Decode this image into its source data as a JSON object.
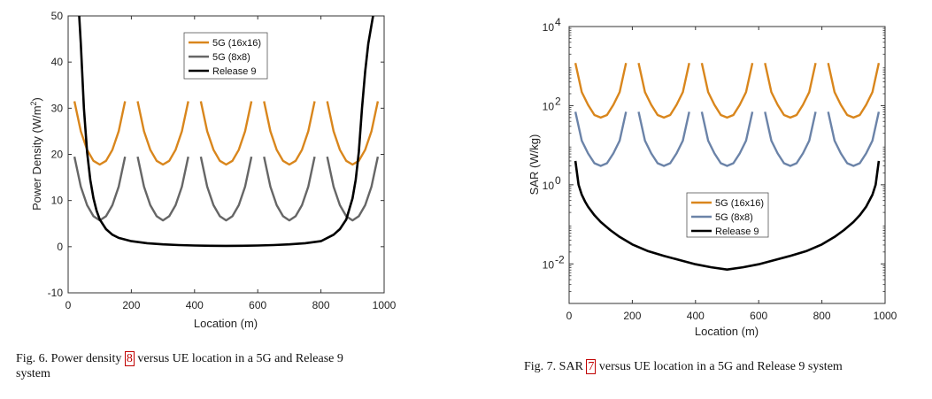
{
  "chart_data": [
    {
      "type": "line",
      "xlabel": "Location (m)",
      "ylabel": "Power Density (W/m",
      "ylabel_sup": "2",
      "ylabel_end": ")",
      "xlim": [
        0,
        1000
      ],
      "ylim": [
        -10,
        50
      ],
      "yscale": "linear",
      "xticks": [
        0,
        200,
        400,
        600,
        800,
        1000
      ],
      "yticks": [
        -10,
        0,
        10,
        20,
        30,
        40,
        50
      ],
      "grid": false,
      "legend_position": "top-center",
      "series": [
        {
          "name": "5G (16x16)",
          "color": "#d9861c",
          "segments": [
            {
              "x": [
                20,
                40,
                60,
                80,
                100,
                120,
                140,
                160,
                180
              ],
              "y": [
                31.5,
                25.0,
                21.0,
                18.6,
                17.8,
                18.6,
                21.0,
                25.0,
                31.5
              ]
            },
            {
              "x": [
                220,
                240,
                260,
                280,
                300,
                320,
                340,
                360,
                380
              ],
              "y": [
                31.5,
                25.0,
                21.0,
                18.6,
                17.8,
                18.6,
                21.0,
                25.0,
                31.5
              ]
            },
            {
              "x": [
                420,
                440,
                460,
                480,
                500,
                520,
                540,
                560,
                580
              ],
              "y": [
                31.5,
                25.0,
                21.0,
                18.6,
                17.8,
                18.6,
                21.0,
                25.0,
                31.5
              ]
            },
            {
              "x": [
                620,
                640,
                660,
                680,
                700,
                720,
                740,
                760,
                780
              ],
              "y": [
                31.5,
                25.0,
                21.0,
                18.6,
                17.8,
                18.6,
                21.0,
                25.0,
                31.5
              ]
            },
            {
              "x": [
                820,
                840,
                860,
                880,
                900,
                920,
                940,
                960,
                980
              ],
              "y": [
                31.5,
                25.0,
                21.0,
                18.6,
                17.8,
                18.6,
                21.0,
                25.0,
                31.5
              ]
            }
          ]
        },
        {
          "name": "5G (8x8)",
          "color": "#666666",
          "segments": [
            {
              "x": [
                20,
                40,
                60,
                80,
                100,
                120,
                140,
                160,
                180
              ],
              "y": [
                19.5,
                13.0,
                9.0,
                6.6,
                5.7,
                6.6,
                9.0,
                13.0,
                19.5
              ]
            },
            {
              "x": [
                220,
                240,
                260,
                280,
                300,
                320,
                340,
                360,
                380
              ],
              "y": [
                19.5,
                13.0,
                9.0,
                6.6,
                5.7,
                6.6,
                9.0,
                13.0,
                19.5
              ]
            },
            {
              "x": [
                420,
                440,
                460,
                480,
                500,
                520,
                540,
                560,
                580
              ],
              "y": [
                19.5,
                13.0,
                9.0,
                6.6,
                5.7,
                6.6,
                9.0,
                13.0,
                19.5
              ]
            },
            {
              "x": [
                620,
                640,
                660,
                680,
                700,
                720,
                740,
                760,
                780
              ],
              "y": [
                19.5,
                13.0,
                9.0,
                6.6,
                5.7,
                6.6,
                9.0,
                13.0,
                19.5
              ]
            },
            {
              "x": [
                820,
                840,
                860,
                880,
                900,
                920,
                940,
                960,
                980
              ],
              "y": [
                19.5,
                13.0,
                9.0,
                6.6,
                5.7,
                6.6,
                9.0,
                13.0,
                19.5
              ]
            }
          ]
        },
        {
          "name": "Release 9",
          "color": "#000000",
          "segments": [
            {
              "x": [
                35,
                40,
                50,
                60,
                70,
                80,
                90,
                100,
                120,
                140,
                160,
                200,
                250,
                300,
                350,
                400,
                450,
                500,
                550,
                600,
                650,
                700,
                750,
                800,
                840,
                860,
                880,
                900,
                910,
                920,
                930,
                940,
                950,
                960,
                965
              ],
              "y": [
                50,
                44,
                30,
                20.5,
                14.5,
                10.5,
                7.8,
                5.9,
                3.8,
                2.6,
                1.9,
                1.2,
                0.75,
                0.5,
                0.35,
                0.26,
                0.2,
                0.18,
                0.2,
                0.26,
                0.35,
                0.5,
                0.75,
                1.2,
                2.6,
                3.8,
                5.9,
                10.5,
                14.5,
                20.5,
                30,
                38,
                44,
                48,
                50
              ]
            }
          ]
        }
      ]
    },
    {
      "type": "line",
      "xlabel": "Location (m)",
      "ylabel": "SAR (W/kg)",
      "xlim": [
        0,
        1000
      ],
      "ylim_log10": [
        -3,
        4
      ],
      "yscale": "log",
      "xticks": [
        0,
        200,
        400,
        600,
        800,
        1000
      ],
      "ytick_exponents": [
        -2,
        0,
        2,
        4
      ],
      "ytick_base": "10",
      "grid": false,
      "legend_position": "bottom-center",
      "series": [
        {
          "name": "5G (16x16)",
          "color": "#d9861c",
          "segments": [
            {
              "x": [
                20,
                40,
                60,
                80,
                100,
                120,
                140,
                160,
                180
              ],
              "y": [
                1200.0,
                220.0,
                105.0,
                58.0,
                50.0,
                58.0,
                105.0,
                220.0,
                1200.0
              ]
            },
            {
              "x": [
                220,
                240,
                260,
                280,
                300,
                320,
                340,
                360,
                380
              ],
              "y": [
                1200.0,
                220.0,
                105.0,
                58.0,
                50.0,
                58.0,
                105.0,
                220.0,
                1200.0
              ]
            },
            {
              "x": [
                420,
                440,
                460,
                480,
                500,
                520,
                540,
                560,
                580
              ],
              "y": [
                1200.0,
                220.0,
                105.0,
                58.0,
                50.0,
                58.0,
                105.0,
                220.0,
                1200.0
              ]
            },
            {
              "x": [
                620,
                640,
                660,
                680,
                700,
                720,
                740,
                760,
                780
              ],
              "y": [
                1200.0,
                220.0,
                105.0,
                58.0,
                50.0,
                58.0,
                105.0,
                220.0,
                1200.0
              ]
            },
            {
              "x": [
                820,
                840,
                860,
                880,
                900,
                920,
                940,
                960,
                980
              ],
              "y": [
                1200.0,
                220.0,
                105.0,
                58.0,
                50.0,
                58.0,
                105.0,
                220.0,
                1200.0
              ]
            }
          ]
        },
        {
          "name": "5G (8x8)",
          "color": "#6b83a8",
          "segments": [
            {
              "x": [
                20,
                40,
                60,
                80,
                100,
                120,
                140,
                160,
                180
              ],
              "y": [
                70.0,
                13.0,
                6.2,
                3.5,
                3.0,
                3.5,
                6.2,
                13.0,
                70.0
              ]
            },
            {
              "x": [
                220,
                240,
                260,
                280,
                300,
                320,
                340,
                360,
                380
              ],
              "y": [
                70.0,
                13.0,
                6.2,
                3.5,
                3.0,
                3.5,
                6.2,
                13.0,
                70.0
              ]
            },
            {
              "x": [
                420,
                440,
                460,
                480,
                500,
                520,
                540,
                560,
                580
              ],
              "y": [
                70.0,
                13.0,
                6.2,
                3.5,
                3.0,
                3.5,
                6.2,
                13.0,
                70.0
              ]
            },
            {
              "x": [
                620,
                640,
                660,
                680,
                700,
                720,
                740,
                760,
                780
              ],
              "y": [
                70.0,
                13.0,
                6.2,
                3.5,
                3.0,
                3.5,
                6.2,
                13.0,
                70.0
              ]
            },
            {
              "x": [
                820,
                840,
                860,
                880,
                900,
                920,
                940,
                960,
                980
              ],
              "y": [
                70.0,
                13.0,
                6.2,
                3.5,
                3.0,
                3.5,
                6.2,
                13.0,
                70.0
              ]
            }
          ]
        },
        {
          "name": "Release 9",
          "color": "#000000",
          "segments": [
            {
              "x": [
                20,
                30,
                40,
                50,
                60,
                80,
                100,
                130,
                160,
                200,
                250,
                300,
                350,
                400,
                450,
                500,
                550,
                600,
                650,
                700,
                750,
                800,
                840,
                870,
                900,
                920,
                940,
                960,
                970,
                980
              ],
              "y": [
                4.0,
                1.0,
                0.56,
                0.38,
                0.28,
                0.17,
                0.115,
                0.072,
                0.048,
                0.031,
                0.021,
                0.016,
                0.0125,
                0.0098,
                0.0082,
                0.0072,
                0.0082,
                0.0098,
                0.0125,
                0.016,
                0.021,
                0.031,
                0.048,
                0.072,
                0.115,
                0.17,
                0.28,
                0.56,
                1.0,
                4.0
              ]
            }
          ]
        }
      ]
    }
  ],
  "captions": {
    "fig6_a": "Fig. 6.  Power density ",
    "fig6_ref": "8",
    "fig6_b": " versus UE location in a 5G and Release 9",
    "fig6_c": "system",
    "fig7_a": "Fig. 7.  SAR ",
    "fig7_ref": "7",
    "fig7_b": " versus UE location in a 5G and Release 9 system"
  }
}
